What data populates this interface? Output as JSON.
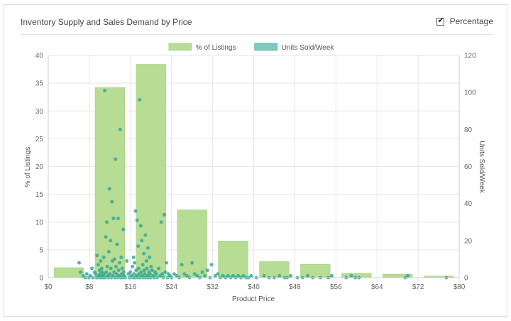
{
  "panel": {
    "title": "Inventory Supply and Sales Demand by Price",
    "percentage_toggle": {
      "label": "Percentage",
      "checked": true,
      "check_glyph": "✔"
    }
  },
  "chart_data": {
    "type": "bar",
    "title": "",
    "xlabel": "Product Price",
    "ylabel_left": "% of Listings",
    "ylabel_right": "Units Sold/Week",
    "xlim": [
      0,
      80
    ],
    "ylim_left": [
      0,
      40
    ],
    "ylim_right": [
      0,
      120
    ],
    "x_ticks": [
      "$0",
      "$8",
      "$16",
      "$24",
      "$32",
      "$40",
      "$48",
      "$56",
      "$64",
      "$72",
      "$80"
    ],
    "y_ticks_left": [
      "0",
      "5",
      "10",
      "15",
      "20",
      "25",
      "30",
      "35",
      "40"
    ],
    "y_ticks_right": [
      "0",
      "20",
      "40",
      "60",
      "80",
      "100",
      "120"
    ],
    "grid": true,
    "legend_position": "top-center",
    "series": [
      {
        "name": "% of Listings",
        "type": "bar",
        "axis": "left",
        "color": "#b7dc94",
        "bins": [
          {
            "from": 0,
            "to": 8,
            "value": 1.8
          },
          {
            "from": 8,
            "to": 16,
            "value": 34.2
          },
          {
            "from": 16,
            "to": 24,
            "value": 38.4
          },
          {
            "from": 24,
            "to": 32,
            "value": 12.2
          },
          {
            "from": 32,
            "to": 40,
            "value": 6.6
          },
          {
            "from": 40,
            "to": 48,
            "value": 2.9
          },
          {
            "from": 48,
            "to": 56,
            "value": 2.4
          },
          {
            "from": 56,
            "to": 64,
            "value": 0.8
          },
          {
            "from": 64,
            "to": 72,
            "value": 0.6
          },
          {
            "from": 72,
            "to": 80,
            "value": 0.3
          }
        ]
      },
      {
        "name": "Units Sold/Week",
        "type": "scatter",
        "axis": "right",
        "color": "#3aa894",
        "points": [
          [
            6.0,
            8
          ],
          [
            6.3,
            3
          ],
          [
            6.8,
            1
          ],
          [
            7.2,
            0
          ],
          [
            7.5,
            2
          ],
          [
            7.9,
            0
          ],
          [
            8.2,
            1
          ],
          [
            8.5,
            5
          ],
          [
            8.7,
            0
          ],
          [
            9.0,
            3
          ],
          [
            9.2,
            2
          ],
          [
            9.4,
            0
          ],
          [
            9.5,
            12
          ],
          [
            9.7,
            7
          ],
          [
            9.8,
            1
          ],
          [
            9.9,
            0
          ],
          [
            10.0,
            4
          ],
          [
            10.1,
            2
          ],
          [
            10.2,
            9
          ],
          [
            10.3,
            0
          ],
          [
            10.4,
            5
          ],
          [
            10.5,
            3
          ],
          [
            10.6,
            1
          ],
          [
            10.7,
            0
          ],
          [
            10.8,
            11
          ],
          [
            10.9,
            2
          ],
          [
            11.0,
            101
          ],
          [
            11.1,
            0
          ],
          [
            11.2,
            22
          ],
          [
            11.3,
            3
          ],
          [
            11.4,
            30
          ],
          [
            11.5,
            6
          ],
          [
            11.6,
            1
          ],
          [
            11.7,
            0
          ],
          [
            11.8,
            14
          ],
          [
            11.9,
            48
          ],
          [
            12.0,
            2
          ],
          [
            12.1,
            20
          ],
          [
            12.2,
            5
          ],
          [
            12.3,
            0
          ],
          [
            12.4,
            41
          ],
          [
            12.5,
            9
          ],
          [
            12.6,
            1
          ],
          [
            12.7,
            32
          ],
          [
            12.8,
            3
          ],
          [
            12.9,
            10
          ],
          [
            13.0,
            0
          ],
          [
            13.1,
            64
          ],
          [
            13.2,
            6
          ],
          [
            13.3,
            2
          ],
          [
            13.4,
            18
          ],
          [
            13.5,
            0
          ],
          [
            13.6,
            32
          ],
          [
            13.7,
            4
          ],
          [
            13.8,
            1
          ],
          [
            13.9,
            8
          ],
          [
            14.0,
            80
          ],
          [
            14.1,
            0
          ],
          [
            14.2,
            11
          ],
          [
            14.3,
            2
          ],
          [
            14.4,
            5
          ],
          [
            14.5,
            0
          ],
          [
            14.6,
            26
          ],
          [
            14.7,
            3
          ],
          [
            14.8,
            1
          ],
          [
            15.0,
            0
          ],
          [
            15.3,
            9
          ],
          [
            15.6,
            2
          ],
          [
            15.8,
            0
          ],
          [
            16.0,
            3
          ],
          [
            16.2,
            1
          ],
          [
            16.4,
            6
          ],
          [
            16.5,
            0
          ],
          [
            16.6,
            11
          ],
          [
            16.7,
            2
          ],
          [
            16.8,
            8
          ],
          [
            16.9,
            0
          ],
          [
            17.0,
            36
          ],
          [
            17.1,
            4
          ],
          [
            17.2,
            1
          ],
          [
            17.3,
            31
          ],
          [
            17.4,
            0
          ],
          [
            17.5,
            17
          ],
          [
            17.6,
            5
          ],
          [
            17.7,
            2
          ],
          [
            17.8,
            96
          ],
          [
            17.9,
            0
          ],
          [
            18.0,
            28
          ],
          [
            18.1,
            3
          ],
          [
            18.2,
            20
          ],
          [
            18.3,
            1
          ],
          [
            18.4,
            7
          ],
          [
            18.5,
            0
          ],
          [
            18.6,
            13
          ],
          [
            18.7,
            4
          ],
          [
            18.8,
            2
          ],
          [
            18.9,
            23
          ],
          [
            19.0,
            0
          ],
          [
            19.1,
            9
          ],
          [
            19.2,
            5
          ],
          [
            19.3,
            1
          ],
          [
            19.4,
            16
          ],
          [
            19.5,
            0
          ],
          [
            19.6,
            3
          ],
          [
            19.7,
            11
          ],
          [
            19.8,
            2
          ],
          [
            19.9,
            0
          ],
          [
            20.0,
            6
          ],
          [
            20.2,
            4
          ],
          [
            20.4,
            1
          ],
          [
            20.6,
            0
          ],
          [
            20.8,
            3
          ],
          [
            21.0,
            2
          ],
          [
            21.2,
            0
          ],
          [
            21.5,
            5
          ],
          [
            21.8,
            1
          ],
          [
            22.0,
            30
          ],
          [
            22.2,
            2
          ],
          [
            22.4,
            0
          ],
          [
            22.6,
            34
          ],
          [
            22.8,
            3
          ],
          [
            23.0,
            8
          ],
          [
            23.2,
            0
          ],
          [
            23.4,
            2
          ],
          [
            23.7,
            1
          ],
          [
            24.0,
            0
          ],
          [
            24.5,
            2
          ],
          [
            25.0,
            1
          ],
          [
            25.5,
            0
          ],
          [
            26.0,
            7
          ],
          [
            26.5,
            2
          ],
          [
            27.0,
            1
          ],
          [
            27.5,
            0
          ],
          [
            28.0,
            8
          ],
          [
            28.5,
            2
          ],
          [
            29.0,
            1
          ],
          [
            29.5,
            0
          ],
          [
            30.0,
            3
          ],
          [
            30.5,
            1
          ],
          [
            31.0,
            4
          ],
          [
            31.5,
            0
          ],
          [
            31.8,
            7
          ],
          [
            32.5,
            1
          ],
          [
            33.0,
            2
          ],
          [
            33.5,
            0
          ],
          [
            34.0,
            1
          ],
          [
            34.5,
            0
          ],
          [
            35.0,
            1
          ],
          [
            35.5,
            0
          ],
          [
            36.0,
            1
          ],
          [
            36.5,
            0
          ],
          [
            37.0,
            1
          ],
          [
            37.5,
            0
          ],
          [
            38.0,
            1
          ],
          [
            38.5,
            0
          ],
          [
            39.0,
            0
          ],
          [
            39.5,
            1
          ],
          [
            40.5,
            0
          ],
          [
            42.0,
            1
          ],
          [
            43.0,
            0
          ],
          [
            44.0,
            0
          ],
          [
            45.0,
            1
          ],
          [
            46.0,
            0
          ],
          [
            46.5,
            0
          ],
          [
            47.2,
            1
          ],
          [
            48.5,
            0
          ],
          [
            49.5,
            0
          ],
          [
            50.5,
            1
          ],
          [
            51.5,
            0
          ],
          [
            53.0,
            0
          ],
          [
            54.5,
            0
          ],
          [
            55.2,
            1
          ],
          [
            58.0,
            0
          ],
          [
            59.0,
            1
          ],
          [
            59.8,
            0
          ],
          [
            60.5,
            0
          ],
          [
            69.5,
            0
          ],
          [
            70.0,
            1
          ],
          [
            77.5,
            0
          ]
        ]
      }
    ]
  }
}
